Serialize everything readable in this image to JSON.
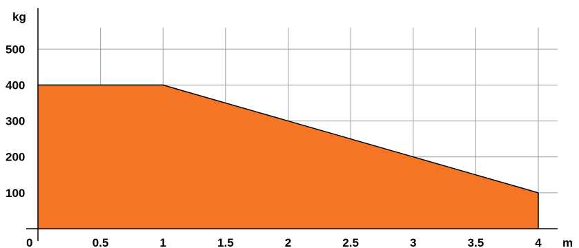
{
  "chart_data": {
    "type": "area",
    "title": "",
    "xlabel": "m",
    "ylabel": "kg",
    "origin_label": "0",
    "xlim": [
      0,
      4
    ],
    "ylim": [
      0,
      560
    ],
    "x_ticks": [
      0.5,
      1,
      1.5,
      2,
      2.5,
      3,
      3.5,
      4
    ],
    "x_tick_labels": [
      "0.5",
      "1",
      "1.5",
      "2",
      "2.5",
      "3",
      "3.5",
      "4"
    ],
    "y_ticks": [
      100,
      200,
      300,
      400,
      500
    ],
    "y_tick_labels": [
      "100",
      "200",
      "300",
      "400",
      "500"
    ],
    "grid": true,
    "legend": "none",
    "series": [
      {
        "x": [
          0,
          1,
          2,
          3,
          4
        ],
        "y": [
          400,
          400,
          300,
          200,
          100
        ]
      }
    ],
    "fill_color": "#F47624",
    "line_color": "#000000",
    "grid_color": "#9a9a9a"
  }
}
